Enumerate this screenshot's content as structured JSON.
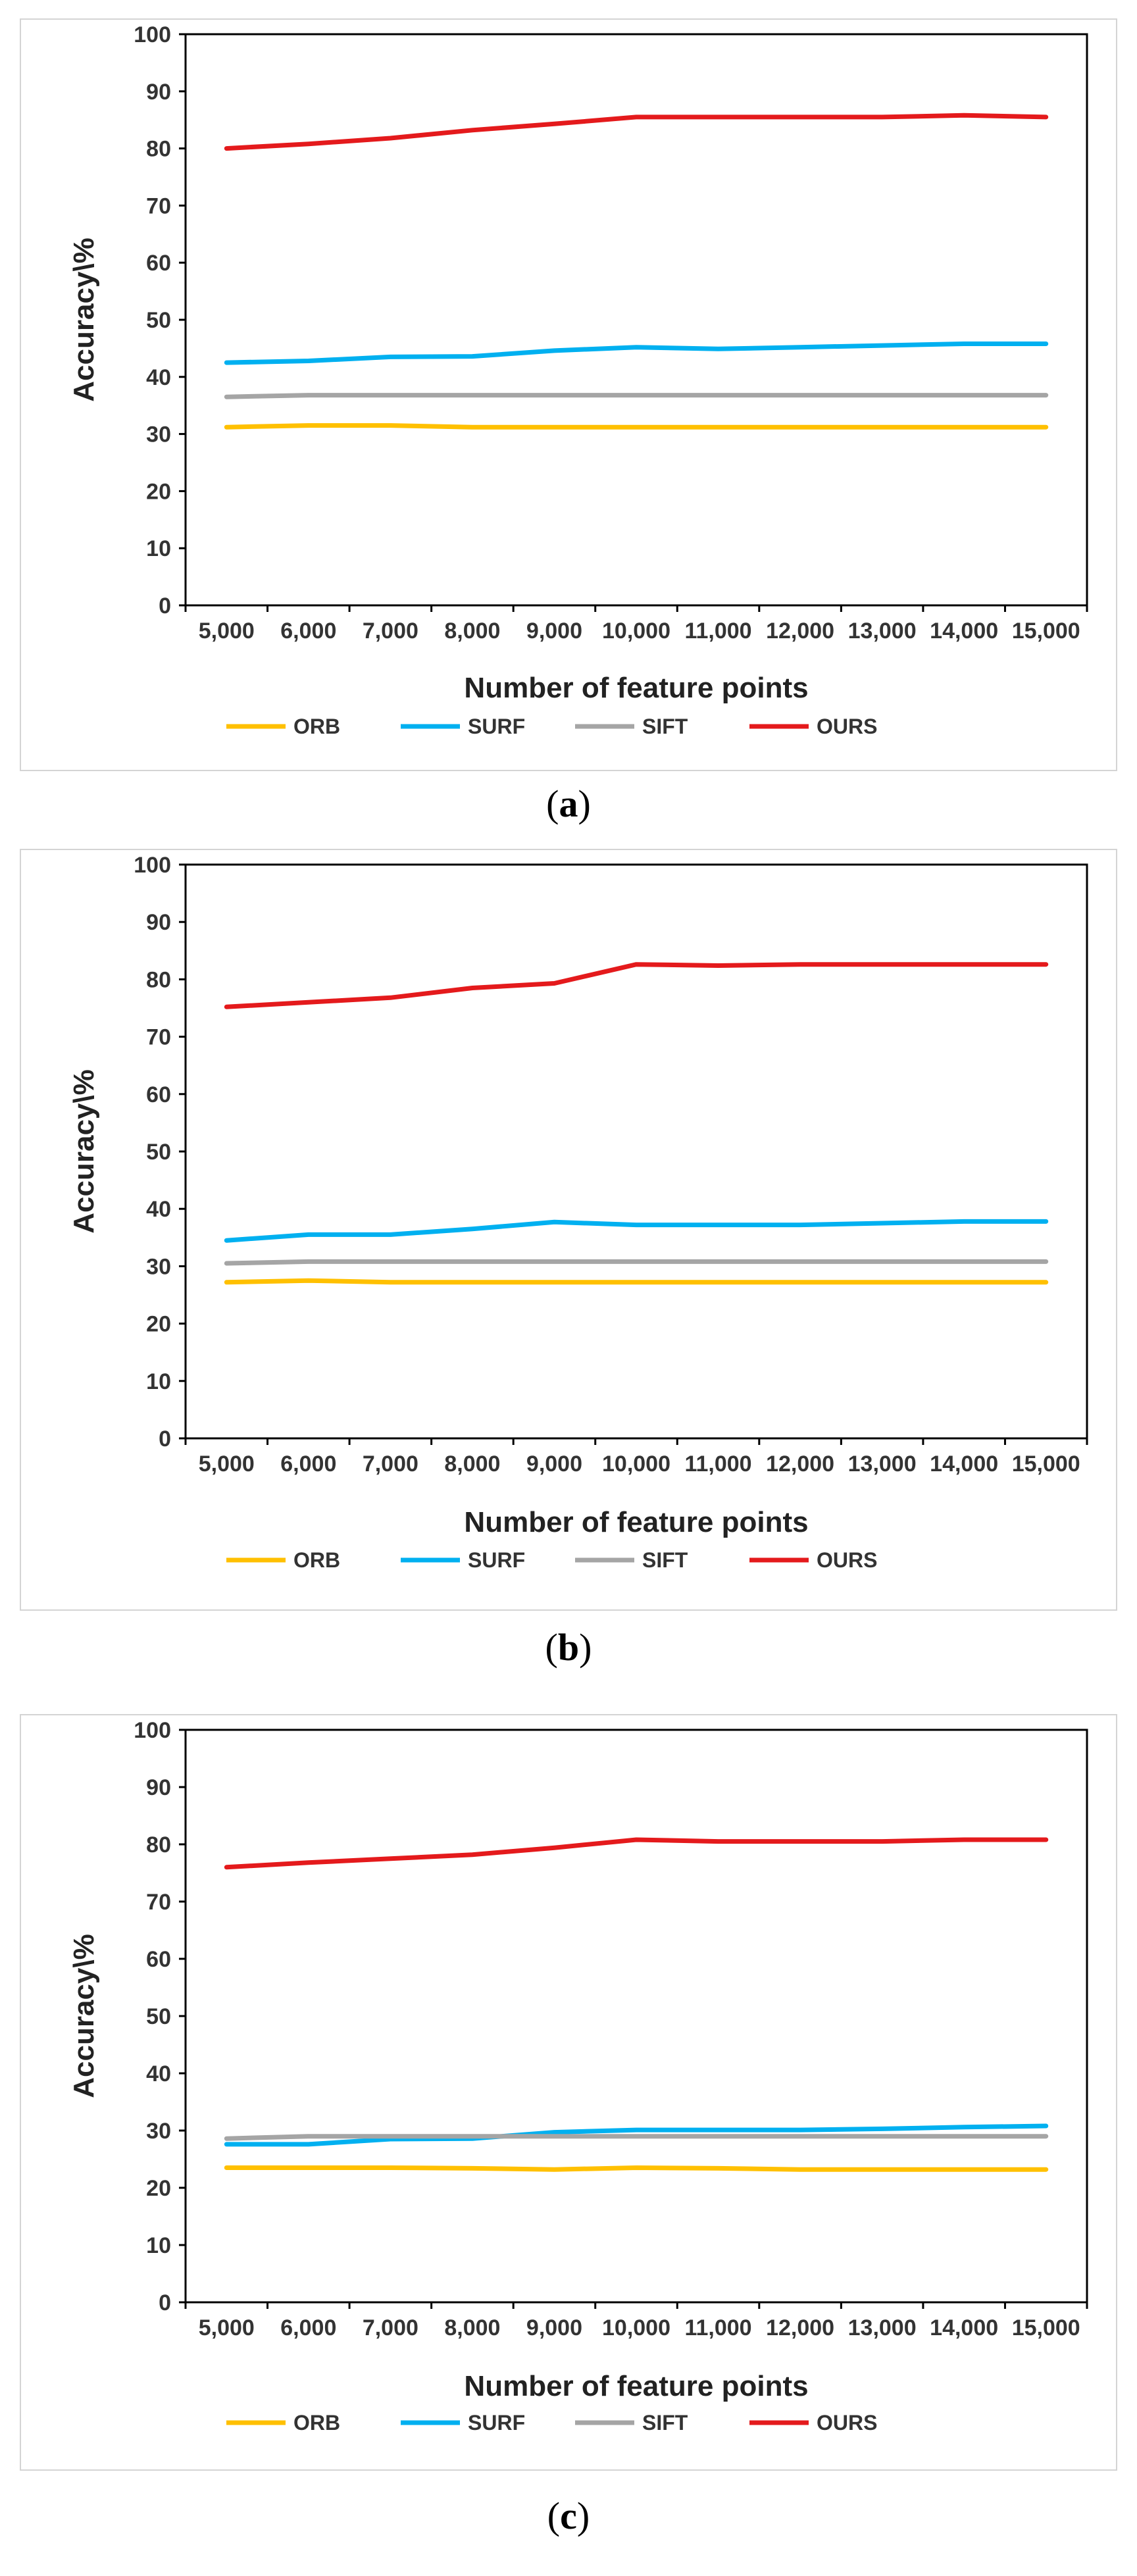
{
  "chart_data": [
    {
      "type": "line",
      "panel_label": "a",
      "xlabel": "Number of feature points",
      "ylabel": "Accuracy\\%",
      "ylim": [
        0,
        100
      ],
      "yticks": [
        "0",
        "10",
        "20",
        "30",
        "40",
        "50",
        "60",
        "70",
        "80",
        "90",
        "100"
      ],
      "categories": [
        "5,000",
        "6,000",
        "7,000",
        "8,000",
        "9,000",
        "10,000",
        "11,000",
        "12,000",
        "13,000",
        "14,000",
        "15,000"
      ],
      "legend_position": "bottom",
      "series": [
        {
          "name": "ORB",
          "color": "#FFC000",
          "values": [
            31.2,
            31.5,
            31.5,
            31.2,
            31.2,
            31.2,
            31.2,
            31.2,
            31.2,
            31.2,
            31.2
          ]
        },
        {
          "name": "SURF",
          "color": "#00B0F0",
          "values": [
            42.5,
            42.8,
            43.5,
            43.6,
            44.6,
            45.2,
            44.9,
            45.2,
            45.5,
            45.8,
            45.8
          ]
        },
        {
          "name": "SIFT",
          "color": "#A5A5A5",
          "values": [
            36.5,
            36.8,
            36.8,
            36.8,
            36.8,
            36.8,
            36.8,
            36.8,
            36.8,
            36.8,
            36.8
          ]
        },
        {
          "name": "OURS",
          "color": "#E41A1C",
          "values": [
            80.0,
            80.8,
            81.8,
            83.2,
            84.3,
            85.5,
            85.5,
            85.5,
            85.5,
            85.8,
            85.5
          ]
        }
      ]
    },
    {
      "type": "line",
      "panel_label": "b",
      "xlabel": "Number of feature points",
      "ylabel": "Accuracy\\%",
      "ylim": [
        0,
        100
      ],
      "yticks": [
        "0",
        "10",
        "20",
        "30",
        "40",
        "50",
        "60",
        "70",
        "80",
        "90",
        "100"
      ],
      "categories": [
        "5,000",
        "6,000",
        "7,000",
        "8,000",
        "9,000",
        "10,000",
        "11,000",
        "12,000",
        "13,000",
        "14,000",
        "15,000"
      ],
      "legend_position": "bottom",
      "series": [
        {
          "name": "ORB",
          "color": "#FFC000",
          "values": [
            27.2,
            27.5,
            27.2,
            27.2,
            27.2,
            27.2,
            27.2,
            27.2,
            27.2,
            27.2,
            27.2
          ]
        },
        {
          "name": "SURF",
          "color": "#00B0F0",
          "values": [
            34.5,
            35.5,
            35.5,
            36.5,
            37.7,
            37.2,
            37.2,
            37.2,
            37.5,
            37.8,
            37.8
          ]
        },
        {
          "name": "SIFT",
          "color": "#A5A5A5",
          "values": [
            30.5,
            30.8,
            30.8,
            30.8,
            30.8,
            30.8,
            30.8,
            30.8,
            30.8,
            30.8,
            30.8
          ]
        },
        {
          "name": "OURS",
          "color": "#E41A1C",
          "values": [
            75.2,
            76.0,
            76.8,
            78.5,
            79.3,
            82.6,
            82.4,
            82.6,
            82.6,
            82.6,
            82.6
          ]
        }
      ]
    },
    {
      "type": "line",
      "panel_label": "c",
      "xlabel": "Number of feature points",
      "ylabel": "Accuracy\\%",
      "ylim": [
        0,
        100
      ],
      "yticks": [
        "0",
        "10",
        "20",
        "30",
        "40",
        "50",
        "60",
        "70",
        "80",
        "90",
        "100"
      ],
      "categories": [
        "5,000",
        "6,000",
        "7,000",
        "8,000",
        "9,000",
        "10,000",
        "11,000",
        "12,000",
        "13,000",
        "14,000",
        "15,000"
      ],
      "legend_position": "bottom",
      "series": [
        {
          "name": "ORB",
          "color": "#FFC000",
          "values": [
            23.5,
            23.5,
            23.5,
            23.4,
            23.2,
            23.5,
            23.4,
            23.2,
            23.2,
            23.2,
            23.2
          ]
        },
        {
          "name": "SURF",
          "color": "#00B0F0",
          "values": [
            27.6,
            27.6,
            28.5,
            28.6,
            29.7,
            30.1,
            30.1,
            30.1,
            30.3,
            30.6,
            30.8
          ]
        },
        {
          "name": "SIFT",
          "color": "#A5A5A5",
          "values": [
            28.6,
            29.0,
            29.0,
            29.0,
            29.0,
            29.0,
            29.0,
            29.0,
            29.0,
            29.0,
            29.0
          ]
        },
        {
          "name": "OURS",
          "color": "#E41A1C",
          "values": [
            76.0,
            76.8,
            77.5,
            78.2,
            79.4,
            80.8,
            80.5,
            80.5,
            80.5,
            80.8,
            80.8
          ]
        }
      ]
    }
  ]
}
